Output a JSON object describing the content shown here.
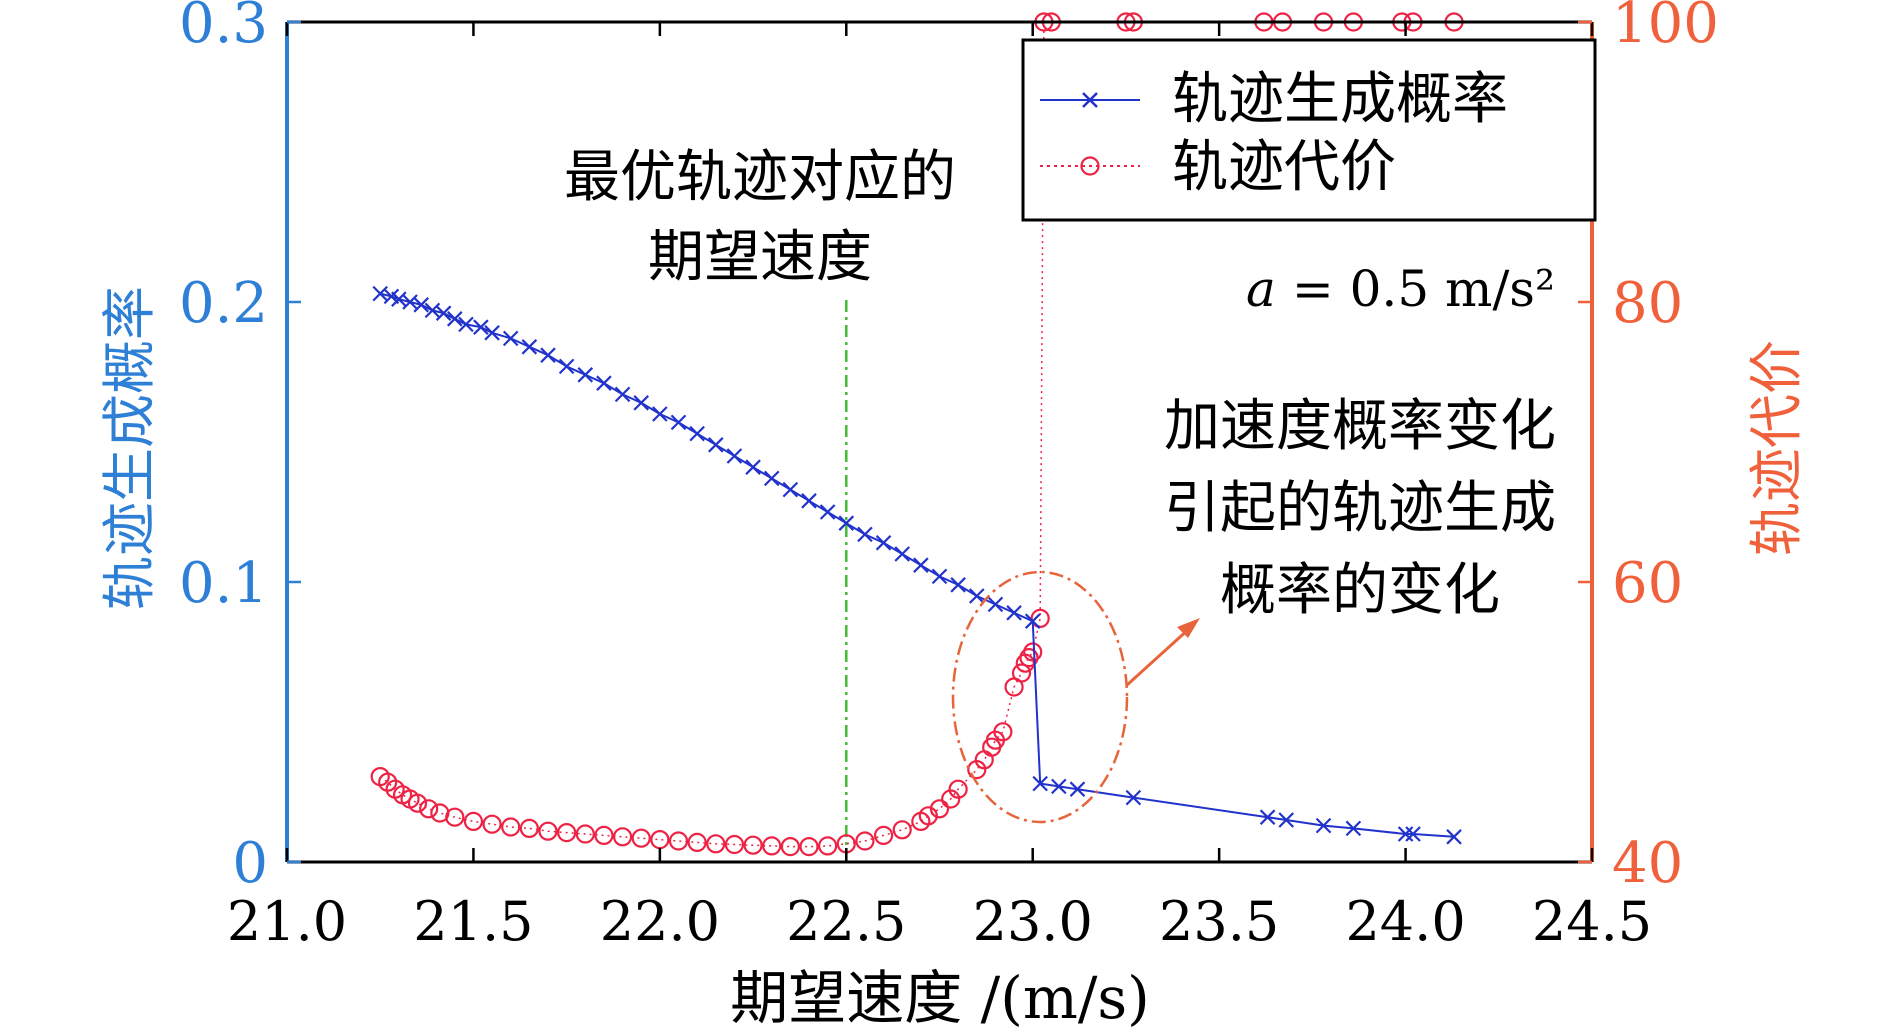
{
  "chart_data": {
    "type": "line",
    "xlabel": "期望速度 /(m/s)",
    "ylabel_left": "轨迹生成概率",
    "ylabel_right": "轨迹代价",
    "xlim": [
      21.0,
      24.5
    ],
    "ylim_left": [
      0,
      0.3
    ],
    "ylim_right": [
      40,
      100
    ],
    "x_ticks": [
      "21.0",
      "21.5",
      "22.0",
      "22.5",
      "23.0",
      "23.5",
      "24.0",
      "24.5"
    ],
    "y_left_ticks": [
      "0",
      "0.1",
      "0.2",
      "0.3"
    ],
    "y_right_ticks": [
      "40",
      "60",
      "80",
      "100"
    ],
    "grid": false,
    "legend_position": "top-right",
    "colors": {
      "left_axis": "#2e7fd6",
      "right_axis": "#f0603a",
      "probability": "#2233cc",
      "cost": "#ee2244",
      "optimal_line": "#44bb33",
      "annotation": "#e8643a"
    },
    "series": [
      {
        "name": "轨迹生成概率",
        "axis": "left",
        "marker": "x",
        "x": [
          21.25,
          21.28,
          21.3,
          21.33,
          21.36,
          21.39,
          21.42,
          21.45,
          21.48,
          21.52,
          21.55,
          21.6,
          21.65,
          21.7,
          21.75,
          21.8,
          21.85,
          21.9,
          21.95,
          22.0,
          22.05,
          22.1,
          22.15,
          22.2,
          22.25,
          22.3,
          22.35,
          22.4,
          22.45,
          22.5,
          22.55,
          22.6,
          22.65,
          22.7,
          22.75,
          22.8,
          22.85,
          22.9,
          22.95,
          23.0,
          23.02,
          23.07,
          23.12,
          23.27,
          23.63,
          23.68,
          23.78,
          23.86,
          24.0,
          24.02,
          24.13
        ],
        "y": [
          0.203,
          0.202,
          0.201,
          0.2,
          0.199,
          0.197,
          0.196,
          0.194,
          0.192,
          0.191,
          0.189,
          0.187,
          0.184,
          0.181,
          0.177,
          0.174,
          0.171,
          0.167,
          0.164,
          0.16,
          0.157,
          0.153,
          0.149,
          0.145,
          0.141,
          0.137,
          0.133,
          0.129,
          0.125,
          0.121,
          0.117,
          0.114,
          0.11,
          0.106,
          0.102,
          0.099,
          0.095,
          0.092,
          0.089,
          0.086,
          0.028,
          0.027,
          0.026,
          0.023,
          0.016,
          0.015,
          0.013,
          0.012,
          0.01,
          0.01,
          0.009
        ]
      },
      {
        "name": "轨迹代价",
        "axis": "right",
        "marker": "o",
        "x": [
          21.25,
          21.27,
          21.29,
          21.31,
          21.33,
          21.35,
          21.38,
          21.41,
          21.45,
          21.5,
          21.55,
          21.6,
          21.65,
          21.7,
          21.75,
          21.8,
          21.85,
          21.9,
          21.95,
          22.0,
          22.05,
          22.1,
          22.15,
          22.2,
          22.25,
          22.3,
          22.35,
          22.4,
          22.45,
          22.5,
          22.55,
          22.6,
          22.65,
          22.7,
          22.72,
          22.75,
          22.78,
          22.8,
          22.85,
          22.87,
          22.89,
          22.9,
          22.92,
          22.95,
          22.97,
          22.98,
          22.99,
          23.0,
          23.02,
          23.03,
          23.05,
          23.25,
          23.27,
          23.62,
          23.67,
          23.78,
          23.86,
          23.99,
          24.02,
          24.13
        ],
        "y": [
          46.1,
          45.7,
          45.2,
          44.8,
          44.5,
          44.2,
          43.8,
          43.5,
          43.2,
          42.9,
          42.7,
          42.5,
          42.4,
          42.2,
          42.1,
          42.0,
          41.9,
          41.8,
          41.7,
          41.6,
          41.5,
          41.4,
          41.3,
          41.25,
          41.2,
          41.15,
          41.1,
          41.1,
          41.15,
          41.3,
          41.5,
          41.9,
          42.3,
          42.9,
          43.3,
          43.8,
          44.5,
          45.2,
          46.6,
          47.3,
          48.2,
          48.7,
          49.3,
          52.5,
          53.5,
          54.2,
          54.6,
          55.0,
          57.4,
          100,
          100,
          100,
          100,
          100,
          100,
          100,
          100,
          100,
          100,
          100
        ]
      }
    ],
    "annotations": {
      "optimal_speed_text": [
        "最优轨迹对应的",
        "期望速度"
      ],
      "optimal_speed_x": 22.5,
      "accel_formula": "a = 0.5 m/s²",
      "accel_formula_symbol": "a",
      "accel_formula_rest": "= 0.5 m/s²",
      "change_text": [
        "加速度概率变化",
        "引起的轨迹生成",
        "概率的变化"
      ]
    }
  }
}
